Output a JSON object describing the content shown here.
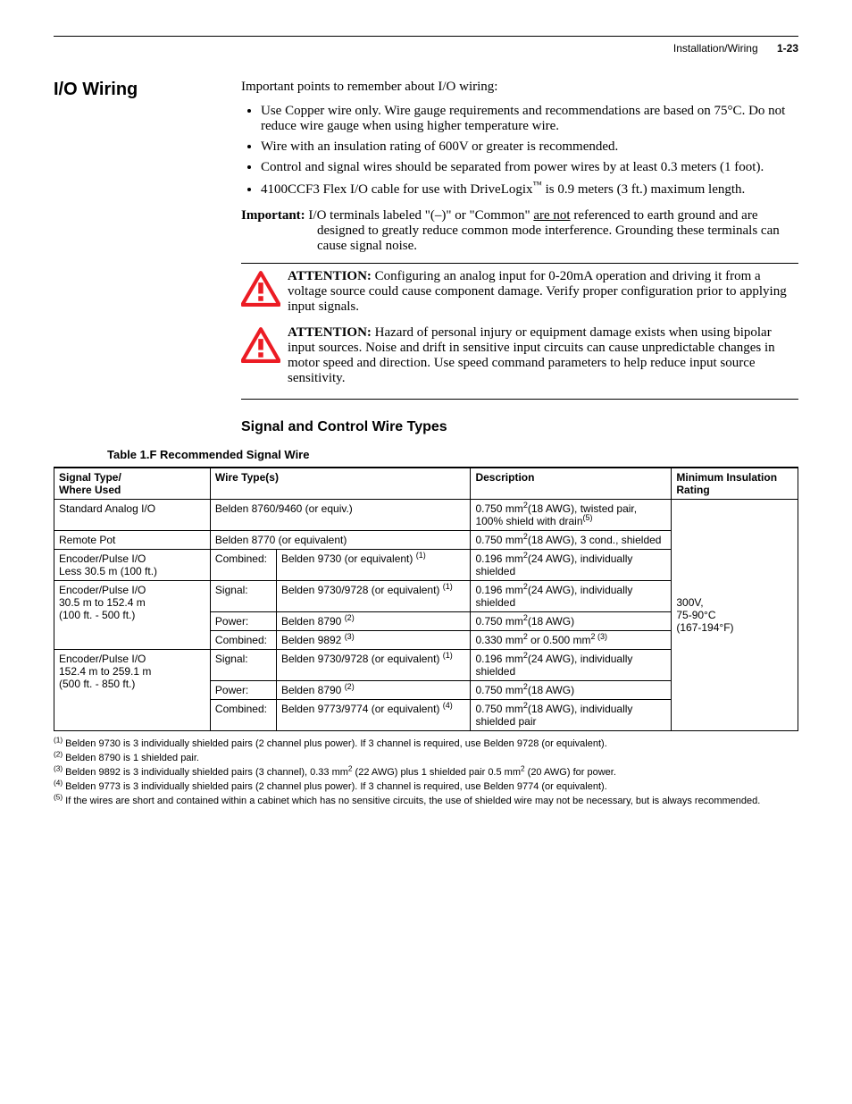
{
  "header": {
    "section": "Installation/Wiring",
    "page": "1-23"
  },
  "sidehead": "I/O Wiring",
  "intro": "Important points to remember about I/O wiring:",
  "bullets": [
    "Use Copper wire only. Wire gauge requirements and recommendations are based on 75°C. Do not reduce wire gauge when using higher temperature wire.",
    "Wire with an insulation rating of 600V or greater is recommended.",
    "Control and signal wires should be separated from power wires by at least 0.3 meters (1 foot).",
    "4100CCF3 Flex I/O cable for use with DriveLogix™ is 0.9 meters (3 ft.) maximum length."
  ],
  "important": {
    "label": "Important:",
    "pre": "I/O terminals labeled \"(–)\" or \"Common\" ",
    "underlined": "are not",
    "post": " referenced to earth ground and are designed to greatly reduce common mode interference. Grounding these terminals can cause signal noise."
  },
  "attentions": [
    {
      "label": "ATTENTION:",
      "text": "Configuring an analog input for 0-20mA operation and driving it from a voltage source could cause component damage. Verify proper configuration prior to applying input signals."
    },
    {
      "label": "ATTENTION:",
      "text": "Hazard of personal injury or equipment damage exists when using bipolar input sources. Noise and drift in sensitive input circuits can cause unpredictable changes in motor speed and direction. Use speed command parameters to help reduce input source sensitivity."
    }
  ],
  "subhead": "Signal and Control Wire Types",
  "tablecaption": "Table 1.F   Recommended Signal Wire",
  "table": {
    "headers": [
      "Signal Type/\nWhere Used",
      "Wire Type(s)",
      "Description",
      "Minimum Insulation Rating"
    ],
    "rating": "300V,\n75-90°C\n(167-194°F)",
    "rows": [
      {
        "type": "Standard Analog I/O",
        "wirelabel": "",
        "wire": "Belden 8760/9460 (or equiv.)",
        "desc_html": "0.750 mm<sup>2</sup>(18 AWG), twisted pair, 100% shield with drain<sup>(5)</sup>"
      },
      {
        "type": "Remote Pot",
        "wirelabel": "",
        "wire": "Belden 8770 (or equivalent)",
        "desc_html": "0.750 mm<sup>2</sup>(18 AWG), 3 cond., shielded"
      },
      {
        "type": "Encoder/Pulse I/O\nLess 30.5 m (100 ft.)",
        "wirelabel": "Combined:",
        "wire_html": "Belden 9730 (or equivalent) <sup>(1)</sup>",
        "desc_html": "0.196 mm<sup>2</sup>(24 AWG), individually shielded"
      },
      {
        "type": "Encoder/Pulse I/O\n30.5 m to 152.4 m\n(100 ft. - 500 ft.)",
        "sub": [
          {
            "wirelabel": "Signal:",
            "wire_html": "Belden 9730/9728 (or equivalent) <sup>(1)</sup>",
            "desc_html": "0.196 mm<sup>2</sup>(24 AWG), individually shielded"
          },
          {
            "wirelabel": "Power:",
            "wire_html": "Belden 8790 <sup>(2)</sup>",
            "desc_html": "0.750 mm<sup>2</sup>(18 AWG)"
          },
          {
            "wirelabel": "Combined:",
            "wire_html": "Belden 9892 <sup>(3)</sup>",
            "desc_html": "0.330 mm<sup>2</sup> or 0.500 mm<sup>2 (3)</sup>"
          }
        ]
      },
      {
        "type": "Encoder/Pulse I/O\n152.4 m to 259.1 m\n(500 ft. - 850 ft.)",
        "sub": [
          {
            "wirelabel": "Signal:",
            "wire_html": "Belden 9730/9728 (or equivalent) <sup>(1)</sup>",
            "desc_html": "0.196 mm<sup>2</sup>(24 AWG), individually shielded"
          },
          {
            "wirelabel": "Power:",
            "wire_html": "Belden 8790 <sup>(2)</sup>",
            "desc_html": "0.750 mm<sup>2</sup>(18 AWG)"
          },
          {
            "wirelabel": "Combined:",
            "wire_html": "Belden 9773/9774 (or equivalent) <sup>(4)</sup>",
            "desc_html": "0.750 mm<sup>2</sup>(18 AWG), individually shielded pair"
          }
        ]
      }
    ]
  },
  "footnotes": [
    {
      "n": "(1)",
      "text_html": "Belden 9730 is 3 individually shielded pairs (2 channel plus power). If 3 channel is required, use Belden 9728 (or equivalent)."
    },
    {
      "n": "(2)",
      "text_html": "Belden 8790 is 1 shielded pair."
    },
    {
      "n": "(3)",
      "text_html": "Belden 9892 is 3 individually shielded pairs (3 channel), 0.33 mm<sup>2</sup> (22 AWG) plus 1 shielded pair 0.5 mm<sup>2</sup> (20 AWG) for power."
    },
    {
      "n": "(4)",
      "text_html": "Belden 9773 is 3 individually shielded pairs (2 channel plus power). If 3 channel is required, use Belden 9774 (or equivalent)."
    },
    {
      "n": "(5)",
      "text_html": "If the wires are short and contained within a cabinet which has no sensitive circuits, the use of shielded wire may not be necessary, but is always recommended."
    }
  ],
  "icon": {
    "fill": "#ec1c24",
    "stroke": "#ec1c24"
  }
}
